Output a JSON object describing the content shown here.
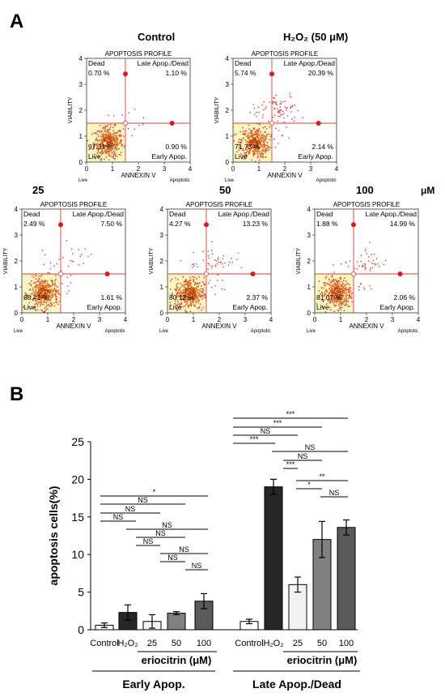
{
  "panel_a": {
    "letter": "A",
    "conc_unit": "μM",
    "plot_title": "APOPTOSIS PROFILE",
    "xlabel": "ANNEXIN V",
    "ylabel": "VIABILITY",
    "live_tick": "Live",
    "apoptotic_tick": "Apoptotic",
    "quad_dead": "Dead",
    "quad_late": "Late Apop./Dead",
    "quad_live": "Live",
    "quad_early": "Early Apop.",
    "x_ticks": [
      "0",
      "1",
      "2",
      "3",
      "4"
    ],
    "y_ticks": [
      "0",
      "1",
      "2",
      "3",
      "4"
    ]
  },
  "chart_data": [
    {
      "type": "scatter",
      "title": "Control",
      "x_range": [
        0,
        4
      ],
      "y_range": [
        0,
        4
      ],
      "quadrants": {
        "dead": "0.70 %",
        "late": "1.10 %",
        "live": "97.31 %",
        "early": "0.90 %"
      }
    },
    {
      "type": "scatter",
      "title": "H₂O₂ (50 μM)",
      "x_range": [
        0,
        4
      ],
      "y_range": [
        0,
        4
      ],
      "quadrants": {
        "dead": "5.74 %",
        "late": "20.39 %",
        "live": "71.73 %",
        "early": "2.14 %"
      }
    },
    {
      "type": "scatter",
      "title": "25",
      "x_range": [
        0,
        4
      ],
      "y_range": [
        0,
        4
      ],
      "quadrants": {
        "dead": "2.49 %",
        "late": "7.50 %",
        "live": "88.41 %",
        "early": "1.61 %"
      }
    },
    {
      "type": "scatter",
      "title": "50",
      "x_range": [
        0,
        4
      ],
      "y_range": [
        0,
        4
      ],
      "quadrants": {
        "dead": "4.27 %",
        "late": "13.23 %",
        "live": "80.12 %",
        "early": "2.37 %"
      }
    },
    {
      "type": "scatter",
      "title": "100",
      "x_range": [
        0,
        4
      ],
      "y_range": [
        0,
        4
      ],
      "quadrants": {
        "dead": "1.88 %",
        "late": "14.99 %",
        "live": "81.07 %",
        "early": "2.06 %"
      }
    },
    {
      "type": "bar",
      "ylabel": "apoptosis cells(%)",
      "ylim": [
        0,
        25
      ],
      "y_ticks": [
        "0",
        "5",
        "10",
        "15",
        "20",
        "25"
      ],
      "groups": [
        {
          "name": "Early Apop.",
          "treatment_label": "eriocitrin (μM)",
          "bars": [
            {
              "label": "Control",
              "value": 0.6,
              "err": 0.3,
              "color": "#ffffff"
            },
            {
              "label": "H₂O₂",
              "value": 2.3,
              "err": 1.0,
              "color": "#262626"
            },
            {
              "label": "25",
              "value": 1.1,
              "err": 0.9,
              "color": "#f2f2f2"
            },
            {
              "label": "50",
              "value": 2.2,
              "err": 0.2,
              "color": "#808080"
            },
            {
              "label": "100",
              "value": 3.8,
              "err": 1.0,
              "color": "#5a5a5a"
            }
          ],
          "significance": [
            {
              "label": "*"
            },
            {
              "label": "NS"
            },
            {
              "label": "NS"
            },
            {
              "label": "NS"
            },
            {
              "label": "NS"
            },
            {
              "label": "NS"
            },
            {
              "label": "NS"
            },
            {
              "label": "NS"
            },
            {
              "label": "NS"
            },
            {
              "label": "NS"
            }
          ]
        },
        {
          "name": "Late Apop./Dead",
          "treatment_label": "eriocitrin (μM)",
          "bars": [
            {
              "label": "Control",
              "value": 1.1,
              "err": 0.3,
              "color": "#ffffff"
            },
            {
              "label": "H₂O₂",
              "value": 19.0,
              "err": 1.0,
              "color": "#262626"
            },
            {
              "label": "25",
              "value": 6.0,
              "err": 1.0,
              "color": "#f2f2f2"
            },
            {
              "label": "50",
              "value": 12.0,
              "err": 2.4,
              "color": "#808080"
            },
            {
              "label": "100",
              "value": 13.6,
              "err": 1.0,
              "color": "#5a5a5a"
            }
          ],
          "significance": [
            {
              "label": "***"
            },
            {
              "label": "***"
            },
            {
              "label": "NS"
            },
            {
              "label": "***"
            },
            {
              "label": "NS"
            },
            {
              "label": "NS"
            },
            {
              "label": "***"
            },
            {
              "label": "**"
            },
            {
              "label": "*"
            },
            {
              "label": "NS"
            }
          ]
        }
      ]
    }
  ],
  "panel_b": {
    "letter": "B"
  }
}
